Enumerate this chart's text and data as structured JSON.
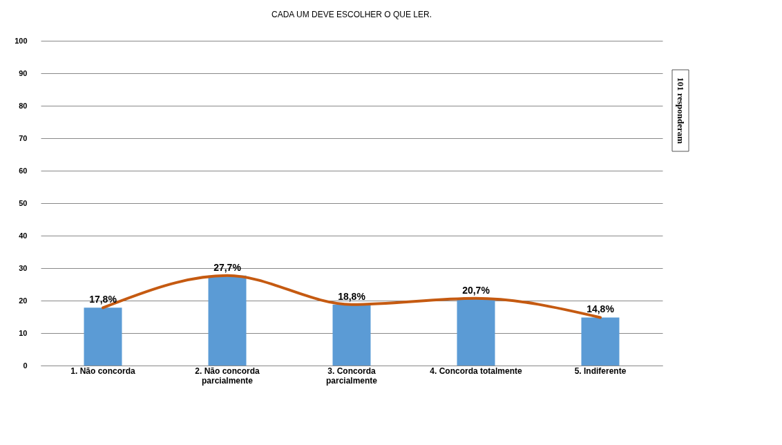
{
  "chart_data": {
    "type": "bar",
    "title": "CADA UM DEVE ESCOLHER O QUE LER.",
    "categories": [
      "1. Não concorda",
      "2. Não concorda\nparcialmente",
      "3. Concorda\nparcialmente",
      "4. Concorda totalmente",
      "5. Indiferente"
    ],
    "series": [
      {
        "color": "#5b9bd5",
        "values": [
          17.8,
          27.7,
          18.8,
          20.7,
          14.8
        ],
        "value_labels": [
          "17,8%",
          "27,7%",
          "18,8%",
          "20,7%",
          "14,8%"
        ]
      },
      {
        "type": "line",
        "color": "#c55a11",
        "values": [
          17.8,
          27.7,
          18.8,
          20.7,
          14.8
        ]
      }
    ],
    "ylim": [
      0,
      100
    ],
    "yticks": [
      0,
      10,
      20,
      30,
      40,
      50,
      60,
      70,
      80,
      90,
      100
    ],
    "grid": "y",
    "annotations": [
      "101 responderam"
    ]
  }
}
